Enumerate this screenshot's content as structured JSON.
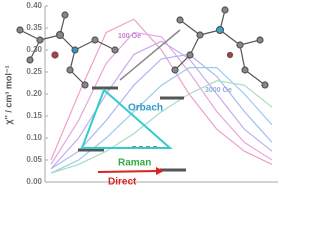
{
  "chart_data": {
    "type": "line",
    "y_label": "χ'' / cm³ mol⁻¹",
    "categories": [
      null,
      null,
      null,
      null,
      null,
      null,
      null,
      null,
      null
    ],
    "ylim": [
      0,
      0.4
    ],
    "yticks": [
      {
        "value": 0,
        "label": "0.00"
      },
      0.05,
      {
        "value": 0.1,
        "label": "0.10"
      },
      0.15,
      {
        "value": 0.2,
        "label": "0.20"
      },
      0.25,
      {
        "value": 0.3,
        "label": "0.30"
      },
      0.35,
      {
        "value": 0.4,
        "label": "0.40"
      }
    ],
    "series": [
      {
        "color": "#f0a0c8",
        "values": [
          0.05,
          0.2,
          0.34,
          0.37,
          0.3,
          0.2,
          0.12,
          0.07,
          0.04
        ]
      },
      {
        "color": "#e6a6e0",
        "values": [
          0.04,
          0.14,
          0.27,
          0.34,
          0.33,
          0.25,
          0.16,
          0.09,
          0.05
        ]
      },
      {
        "color": "#c8aaf0",
        "values": [
          0.03,
          0.1,
          0.2,
          0.29,
          0.32,
          0.28,
          0.2,
          0.12,
          0.07
        ]
      },
      {
        "color": "#a8b8f4",
        "values": [
          0.03,
          0.07,
          0.14,
          0.22,
          0.28,
          0.29,
          0.24,
          0.16,
          0.09
        ]
      },
      {
        "color": "#9ccbe8",
        "values": [
          0.02,
          0.05,
          0.1,
          0.16,
          0.22,
          0.26,
          0.26,
          0.2,
          0.13
        ]
      },
      {
        "color": "#a6dcc8",
        "values": [
          0.02,
          0.04,
          0.07,
          0.11,
          0.16,
          0.2,
          0.23,
          0.22,
          0.17
        ]
      }
    ],
    "annotations": [
      "100 Oe",
      "3000 Oe",
      "Orbach",
      "Raman",
      "Direct"
    ]
  }
}
